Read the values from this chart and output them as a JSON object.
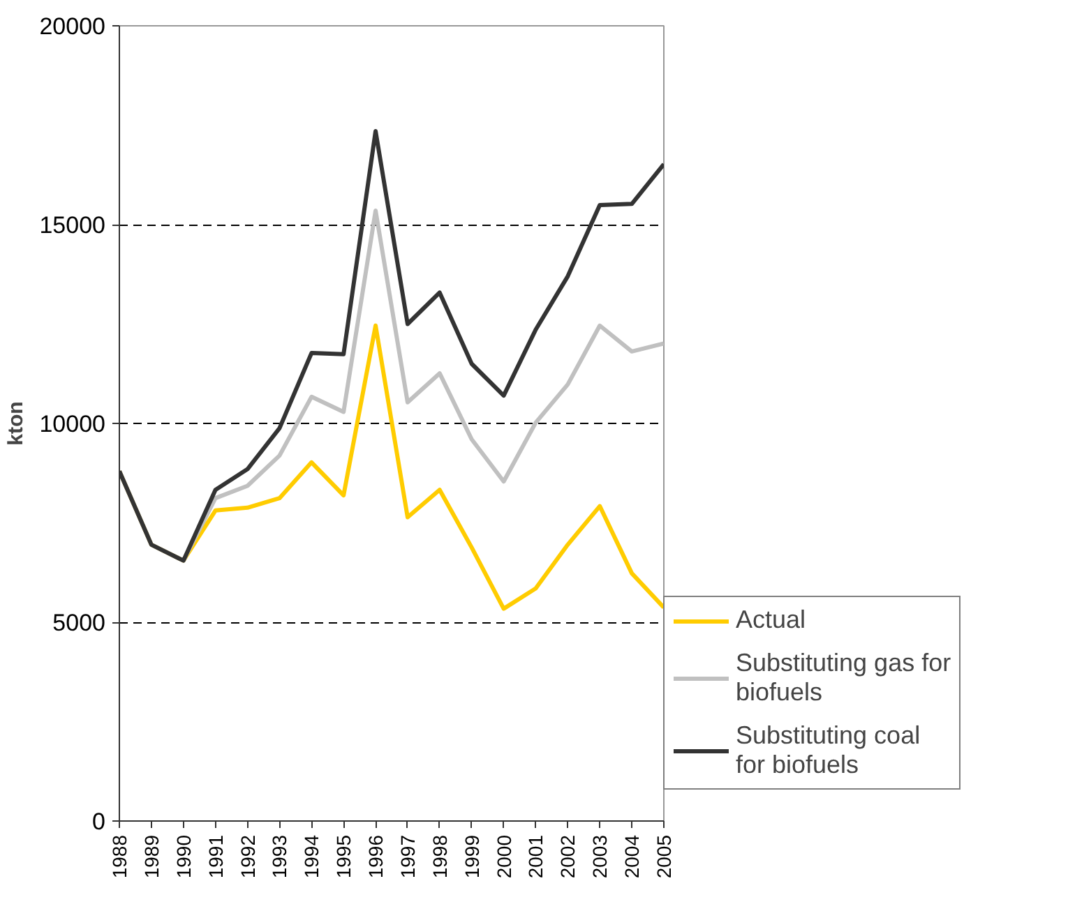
{
  "chart_data": {
    "type": "line",
    "ylabel": "kton",
    "x": [
      1988,
      1989,
      1990,
      1991,
      1992,
      1993,
      1994,
      1995,
      1996,
      1997,
      1998,
      1999,
      2000,
      2001,
      2002,
      2003,
      2004,
      2005
    ],
    "xlim": [
      1988,
      2005
    ],
    "xticks": [
      1988,
      1989,
      1990,
      1991,
      1992,
      1993,
      1994,
      1995,
      1996,
      1997,
      1998,
      1999,
      2000,
      2001,
      2002,
      2003,
      2004,
      2005
    ],
    "ylim": [
      0,
      20000
    ],
    "yticks": [
      0,
      5000,
      10000,
      15000,
      20000
    ],
    "grid": "y",
    "legend": "right",
    "line_style": "solid",
    "marker": "none",
    "series": [
      {
        "name": "Actual",
        "color": "#ffcc00",
        "values": [
          8800,
          6950,
          6550,
          7810,
          7880,
          8120,
          9020,
          8190,
          12460,
          7640,
          8330,
          6880,
          5340,
          5850,
          6950,
          7920,
          6230,
          5370
        ]
      },
      {
        "name": "Substituting gas for biofuels",
        "color": "#c0c0c0",
        "values": [
          8800,
          6950,
          6550,
          8120,
          8430,
          9190,
          10670,
          10290,
          15350,
          10530,
          11260,
          9600,
          8540,
          10020,
          10980,
          12460,
          11810,
          12010
        ]
      },
      {
        "name": "Substituting coal for biofuels",
        "color": "#333333",
        "values": [
          8800,
          6950,
          6550,
          8330,
          8850,
          9880,
          11770,
          11740,
          17350,
          12500,
          13290,
          11500,
          10700,
          12360,
          13700,
          15490,
          15520,
          16520
        ]
      }
    ]
  }
}
